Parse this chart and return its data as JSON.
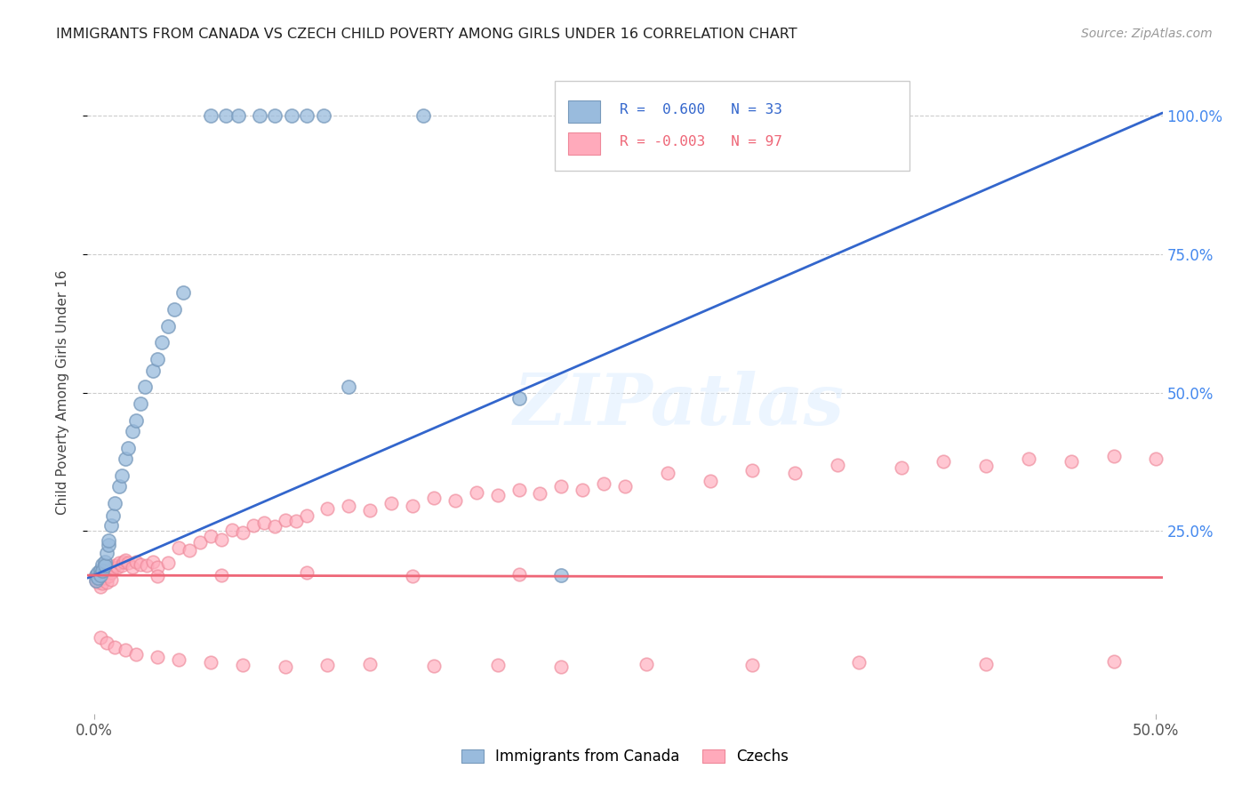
{
  "title": "IMMIGRANTS FROM CANADA VS CZECH CHILD POVERTY AMONG GIRLS UNDER 16 CORRELATION CHART",
  "source": "Source: ZipAtlas.com",
  "ylabel": "Child Poverty Among Girls Under 16",
  "ytick_labels": [
    "100.0%",
    "75.0%",
    "50.0%",
    "25.0%"
  ],
  "ytick_values": [
    1.0,
    0.75,
    0.5,
    0.25
  ],
  "xlim": [
    -0.003,
    0.503
  ],
  "ylim": [
    -0.08,
    1.08
  ],
  "legend_label1": "Immigrants from Canada",
  "legend_label2": "Czechs",
  "R1": 0.6,
  "N1": 33,
  "R2": -0.003,
  "N2": 97,
  "color_blue": "#99BBDD",
  "color_blue_edge": "#7799BB",
  "color_pink": "#FFAABB",
  "color_pink_edge": "#EE8899",
  "color_trendline_blue": "#3366CC",
  "color_trendline_pink": "#EE6677",
  "watermark": "ZIPatlas",
  "blue_x": [
    0.001,
    0.001,
    0.002,
    0.002,
    0.003,
    0.003,
    0.004,
    0.004,
    0.005,
    0.005,
    0.006,
    0.007,
    0.007,
    0.008,
    0.009,
    0.01,
    0.012,
    0.013,
    0.015,
    0.016,
    0.018,
    0.02,
    0.022,
    0.024,
    0.028,
    0.03,
    0.032,
    0.035,
    0.038,
    0.042,
    0.12,
    0.2,
    0.22
  ],
  "blue_y": [
    0.17,
    0.16,
    0.175,
    0.165,
    0.18,
    0.17,
    0.19,
    0.178,
    0.195,
    0.188,
    0.21,
    0.225,
    0.232,
    0.26,
    0.278,
    0.3,
    0.33,
    0.35,
    0.38,
    0.4,
    0.43,
    0.45,
    0.48,
    0.51,
    0.54,
    0.56,
    0.59,
    0.62,
    0.65,
    0.68,
    0.51,
    0.49,
    0.17
  ],
  "blue_top_x": [
    0.055,
    0.062,
    0.068,
    0.078,
    0.085,
    0.093,
    0.1,
    0.108,
    0.155
  ],
  "blue_top_y": [
    1.0,
    1.0,
    1.0,
    1.0,
    1.0,
    1.0,
    1.0,
    1.0,
    1.0
  ],
  "blue_high_x": [
    0.23
  ],
  "blue_high_y": [
    1.0
  ],
  "pink_x": [
    0.001,
    0.001,
    0.002,
    0.002,
    0.003,
    0.003,
    0.003,
    0.004,
    0.004,
    0.005,
    0.005,
    0.006,
    0.006,
    0.007,
    0.007,
    0.008,
    0.008,
    0.009,
    0.01,
    0.011,
    0.012,
    0.013,
    0.014,
    0.015,
    0.016,
    0.018,
    0.02,
    0.022,
    0.025,
    0.028,
    0.03,
    0.035,
    0.04,
    0.045,
    0.05,
    0.055,
    0.06,
    0.065,
    0.07,
    0.075,
    0.08,
    0.085,
    0.09,
    0.095,
    0.1,
    0.11,
    0.12,
    0.13,
    0.14,
    0.15,
    0.16,
    0.17,
    0.18,
    0.19,
    0.2,
    0.21,
    0.22,
    0.23,
    0.24,
    0.25,
    0.27,
    0.29,
    0.31,
    0.33,
    0.35,
    0.38,
    0.4,
    0.42,
    0.44,
    0.46,
    0.48,
    0.5,
    0.003,
    0.006,
    0.01,
    0.015,
    0.02,
    0.03,
    0.04,
    0.055,
    0.07,
    0.09,
    0.11,
    0.13,
    0.16,
    0.19,
    0.22,
    0.26,
    0.31,
    0.36,
    0.42,
    0.48,
    0.03,
    0.06,
    0.1,
    0.15,
    0.2
  ],
  "pink_y": [
    0.17,
    0.16,
    0.172,
    0.158,
    0.175,
    0.163,
    0.15,
    0.168,
    0.155,
    0.178,
    0.165,
    0.172,
    0.158,
    0.18,
    0.168,
    0.175,
    0.162,
    0.183,
    0.188,
    0.185,
    0.192,
    0.188,
    0.195,
    0.198,
    0.192,
    0.185,
    0.195,
    0.19,
    0.188,
    0.195,
    0.185,
    0.192,
    0.22,
    0.215,
    0.23,
    0.24,
    0.235,
    0.252,
    0.248,
    0.26,
    0.265,
    0.258,
    0.27,
    0.268,
    0.278,
    0.29,
    0.295,
    0.288,
    0.3,
    0.295,
    0.31,
    0.305,
    0.32,
    0.315,
    0.325,
    0.318,
    0.33,
    0.325,
    0.335,
    0.33,
    0.355,
    0.34,
    0.36,
    0.355,
    0.37,
    0.365,
    0.375,
    0.368,
    0.38,
    0.375,
    0.385,
    0.38,
    0.058,
    0.048,
    0.04,
    0.035,
    0.028,
    0.022,
    0.018,
    0.012,
    0.008,
    0.005,
    0.008,
    0.01,
    0.006,
    0.008,
    0.005,
    0.01,
    0.008,
    0.012,
    0.01,
    0.015,
    0.168,
    0.17,
    0.175,
    0.168,
    0.172
  ]
}
